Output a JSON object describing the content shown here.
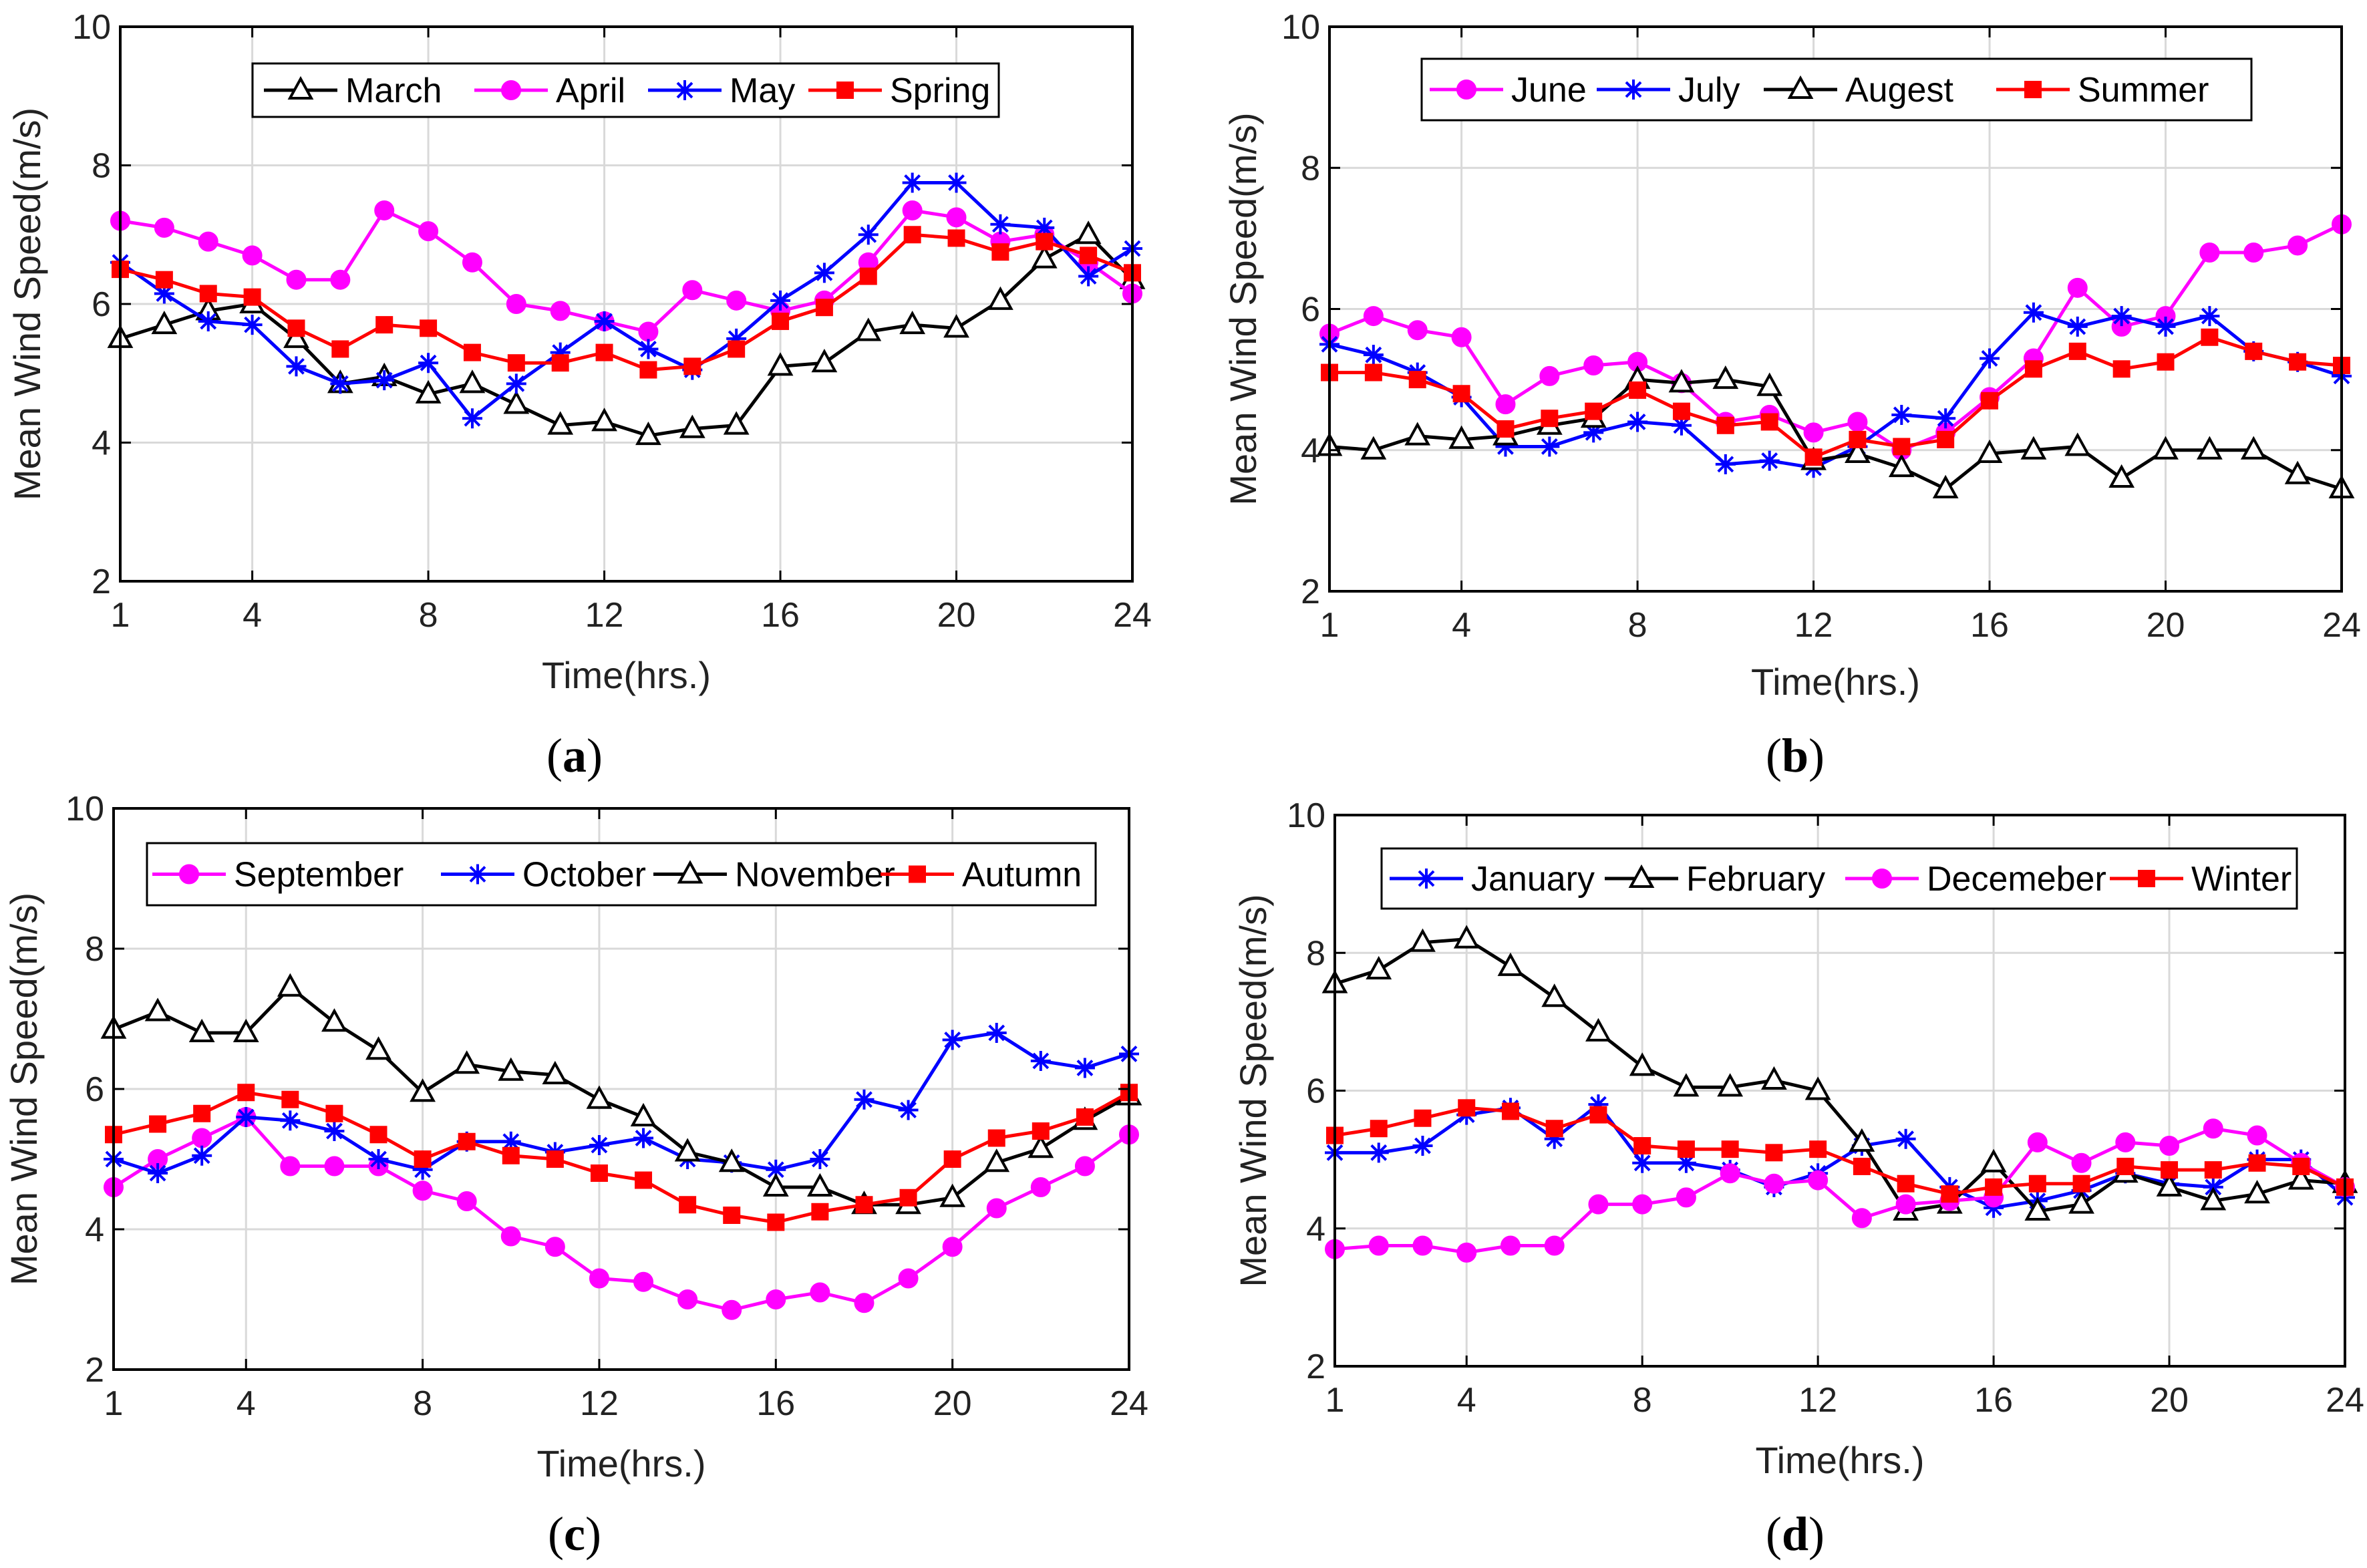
{
  "figure": {
    "colors": {
      "black": "#000000",
      "magenta": "#ff00ff",
      "blue": "#0000ff",
      "red": "#ff0000",
      "grid": "#d9d9d9"
    }
  },
  "chart_data": [
    {
      "panel": "a",
      "type": "line",
      "xlabel": "Time(hrs.)",
      "ylabel": "Mean Wind Speed(m/s)",
      "xlim": [
        1,
        24
      ],
      "ylim": [
        2,
        10
      ],
      "xticks": [
        1,
        4,
        8,
        12,
        16,
        20,
        24
      ],
      "yticks": [
        2,
        4,
        6,
        8,
        10
      ],
      "grid": true,
      "legend_position": "top",
      "x": [
        1,
        2,
        3,
        4,
        5,
        6,
        7,
        8,
        9,
        10,
        11,
        12,
        13,
        14,
        15,
        16,
        17,
        18,
        19,
        20,
        21,
        22,
        23,
        24
      ],
      "series": [
        {
          "name": "March",
          "color": "#000000",
          "marker": "triangle",
          "values": [
            5.5,
            5.7,
            5.9,
            6.0,
            5.5,
            4.85,
            4.95,
            4.7,
            4.85,
            4.55,
            4.25,
            4.3,
            4.1,
            4.2,
            4.25,
            5.1,
            5.15,
            5.6,
            5.7,
            5.65,
            6.05,
            6.65,
            7.0,
            6.35
          ]
        },
        {
          "name": "April",
          "color": "#ff00ff",
          "marker": "circle",
          "values": [
            7.2,
            7.1,
            6.9,
            6.7,
            6.35,
            6.35,
            7.35,
            7.05,
            6.6,
            6.0,
            5.9,
            5.75,
            5.6,
            6.2,
            6.05,
            5.9,
            6.05,
            6.6,
            7.35,
            7.25,
            6.9,
            7.0,
            6.6,
            6.15
          ]
        },
        {
          "name": "May",
          "color": "#0000ff",
          "marker": "asterisk",
          "values": [
            6.6,
            6.15,
            5.75,
            5.7,
            5.1,
            4.85,
            4.9,
            5.15,
            4.35,
            4.85,
            5.3,
            5.75,
            5.35,
            5.05,
            5.5,
            6.05,
            6.45,
            7.0,
            7.75,
            7.75,
            7.15,
            7.1,
            6.4,
            6.8
          ]
        },
        {
          "name": "Spring",
          "color": "#ff0000",
          "marker": "square",
          "values": [
            6.5,
            6.35,
            6.15,
            6.1,
            5.65,
            5.35,
            5.7,
            5.65,
            5.3,
            5.15,
            5.15,
            5.3,
            5.05,
            5.1,
            5.35,
            5.75,
            5.95,
            6.4,
            7.0,
            6.95,
            6.75,
            6.9,
            6.7,
            6.45
          ]
        }
      ],
      "caption_letter": "a",
      "caption_open": "(",
      "caption_close": ")"
    },
    {
      "panel": "b",
      "type": "line",
      "xlabel": "Time(hrs.)",
      "ylabel": "Mean Wind Speed(m/s)",
      "xlim": [
        1,
        24
      ],
      "ylim": [
        2,
        10
      ],
      "xticks": [
        1,
        4,
        8,
        12,
        16,
        20,
        24
      ],
      "yticks": [
        2,
        4,
        6,
        8,
        10
      ],
      "grid": true,
      "legend_position": "top",
      "x": [
        1,
        2,
        3,
        4,
        5,
        6,
        7,
        8,
        9,
        10,
        11,
        12,
        13,
        14,
        15,
        16,
        17,
        18,
        19,
        20,
        21,
        22,
        23,
        24
      ],
      "series": [
        {
          "name": "June",
          "color": "#ff00ff",
          "marker": "circle",
          "values": [
            5.65,
            5.9,
            5.7,
            5.6,
            4.65,
            5.05,
            5.2,
            5.25,
            4.95,
            4.4,
            4.5,
            4.25,
            4.4,
            4.0,
            4.25,
            4.75,
            5.3,
            6.3,
            5.75,
            5.9,
            6.8,
            6.8,
            6.9,
            7.2
          ]
        },
        {
          "name": "July",
          "color": "#0000ff",
          "marker": "asterisk",
          "values": [
            5.5,
            5.35,
            5.1,
            4.75,
            4.05,
            4.05,
            4.25,
            4.4,
            4.35,
            3.8,
            3.85,
            3.75,
            4.05,
            4.5,
            4.45,
            5.3,
            5.95,
            5.75,
            5.9,
            5.75,
            5.9,
            5.4,
            5.25,
            5.05
          ]
        },
        {
          "name": "Augest",
          "color": "#000000",
          "marker": "triangle",
          "values": [
            4.05,
            4.0,
            4.2,
            4.15,
            4.2,
            4.35,
            4.45,
            5.0,
            4.95,
            5.0,
            4.9,
            3.85,
            3.95,
            3.75,
            3.45,
            3.95,
            4.0,
            4.05,
            3.6,
            4.0,
            4.0,
            4.0,
            3.65,
            3.45
          ]
        },
        {
          "name": "Summer",
          "color": "#ff0000",
          "marker": "square",
          "values": [
            5.1,
            5.1,
            5.0,
            4.8,
            4.3,
            4.45,
            4.55,
            4.85,
            4.55,
            4.35,
            4.4,
            3.9,
            4.15,
            4.05,
            4.15,
            4.7,
            5.15,
            5.4,
            5.15,
            5.25,
            5.6,
            5.4,
            5.25,
            5.2
          ]
        }
      ],
      "caption_letter": "b",
      "caption_open": "(",
      "caption_close": ")"
    },
    {
      "panel": "c",
      "type": "line",
      "xlabel": "Time(hrs.)",
      "ylabel": "Mean Wind Speed(m/s)",
      "xlim": [
        1,
        24
      ],
      "ylim": [
        2,
        10
      ],
      "xticks": [
        1,
        4,
        8,
        12,
        16,
        20,
        24
      ],
      "yticks": [
        2,
        4,
        6,
        8,
        10
      ],
      "grid": true,
      "legend_position": "top",
      "x": [
        1,
        2,
        3,
        4,
        5,
        6,
        7,
        8,
        9,
        10,
        11,
        12,
        13,
        14,
        15,
        16,
        17,
        18,
        19,
        20,
        21,
        22,
        23,
        24
      ],
      "series": [
        {
          "name": "September",
          "color": "#ff00ff",
          "marker": "circle",
          "values": [
            4.6,
            5.0,
            5.3,
            5.6,
            4.9,
            4.9,
            4.9,
            4.55,
            4.4,
            3.9,
            3.75,
            3.3,
            3.25,
            3.0,
            2.85,
            3.0,
            3.1,
            2.95,
            3.3,
            3.75,
            4.3,
            4.6,
            4.9,
            5.35
          ]
        },
        {
          "name": "October",
          "color": "#0000ff",
          "marker": "asterisk",
          "values": [
            5.0,
            4.8,
            5.05,
            5.6,
            5.55,
            5.4,
            5.0,
            4.85,
            5.25,
            5.25,
            5.1,
            5.2,
            5.3,
            5.0,
            4.95,
            4.85,
            5.0,
            5.85,
            5.7,
            6.7,
            6.8,
            6.4,
            6.3,
            6.5
          ]
        },
        {
          "name": "November",
          "color": "#000000",
          "marker": "triangle",
          "values": [
            6.85,
            7.1,
            6.8,
            6.8,
            7.45,
            6.95,
            6.55,
            5.95,
            6.35,
            6.25,
            6.2,
            5.85,
            5.6,
            5.1,
            4.95,
            4.6,
            4.6,
            4.35,
            4.35,
            4.45,
            4.95,
            5.15,
            5.55,
            5.9
          ]
        },
        {
          "name": "Autumn",
          "color": "#ff0000",
          "marker": "square",
          "values": [
            5.35,
            5.5,
            5.65,
            5.95,
            5.85,
            5.65,
            5.35,
            5.0,
            5.25,
            5.05,
            5.0,
            4.8,
            4.7,
            4.35,
            4.2,
            4.1,
            4.25,
            4.35,
            4.45,
            5.0,
            5.3,
            5.4,
            5.6,
            5.95
          ]
        }
      ],
      "caption_letter": "c",
      "caption_open": "(",
      "caption_close": ")"
    },
    {
      "panel": "d",
      "type": "line",
      "xlabel": "Time(hrs.)",
      "ylabel": "Mean Wind Speed(m/s)",
      "xlim": [
        1,
        24
      ],
      "ylim": [
        2,
        10
      ],
      "xticks": [
        1,
        4,
        8,
        12,
        16,
        20,
        24
      ],
      "yticks": [
        2,
        4,
        6,
        8,
        10
      ],
      "grid": true,
      "legend_position": "top",
      "x": [
        1,
        2,
        3,
        4,
        5,
        6,
        7,
        8,
        9,
        10,
        11,
        12,
        13,
        14,
        15,
        16,
        17,
        18,
        19,
        20,
        21,
        22,
        23,
        24
      ],
      "series": [
        {
          "name": "January",
          "color": "#0000ff",
          "marker": "asterisk",
          "values": [
            5.1,
            5.1,
            5.2,
            5.65,
            5.75,
            5.3,
            5.8,
            4.95,
            4.95,
            4.85,
            4.6,
            4.8,
            5.2,
            5.3,
            4.6,
            4.3,
            4.4,
            4.55,
            4.8,
            4.65,
            4.6,
            5.0,
            5.0,
            4.45
          ]
        },
        {
          "name": "February",
          "color": "#000000",
          "marker": "triangle",
          "values": [
            7.55,
            7.75,
            8.15,
            8.2,
            7.8,
            7.35,
            6.85,
            6.35,
            6.05,
            6.05,
            6.15,
            6.0,
            5.25,
            4.25,
            4.35,
            4.95,
            4.25,
            4.35,
            4.8,
            4.6,
            4.4,
            4.5,
            4.7,
            4.65
          ]
        },
        {
          "name": "Decemeber",
          "color": "#ff00ff",
          "marker": "circle",
          "values": [
            3.7,
            3.75,
            3.75,
            3.65,
            3.75,
            3.75,
            4.35,
            4.35,
            4.45,
            4.8,
            4.65,
            4.7,
            4.15,
            4.35,
            4.4,
            4.45,
            5.25,
            4.95,
            5.25,
            5.2,
            5.45,
            5.35,
            4.95,
            4.6
          ]
        },
        {
          "name": "Winter",
          "color": "#ff0000",
          "marker": "square",
          "values": [
            5.35,
            5.45,
            5.6,
            5.75,
            5.7,
            5.45,
            5.65,
            5.2,
            5.15,
            5.15,
            5.1,
            5.15,
            4.9,
            4.65,
            4.5,
            4.6,
            4.65,
            4.65,
            4.9,
            4.85,
            4.85,
            4.95,
            4.9,
            4.6
          ]
        }
      ],
      "caption_letter": "d",
      "caption_open": "(",
      "caption_close": ")"
    }
  ]
}
